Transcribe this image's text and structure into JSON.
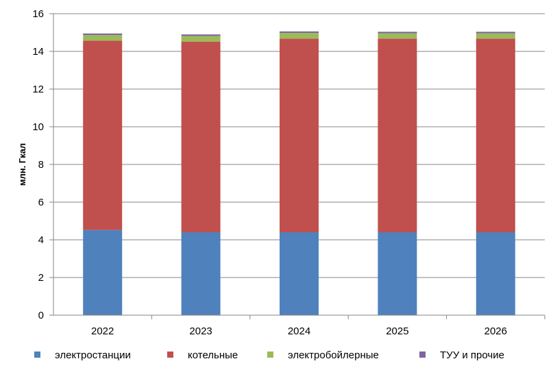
{
  "chart_data": {
    "type": "bar",
    "stacked": true,
    "title": "",
    "xlabel": "",
    "ylabel": "млн. Гкал",
    "ylim": [
      0,
      16
    ],
    "yticks": [
      "0",
      "2",
      "4",
      "6",
      "8",
      "10",
      "12",
      "14",
      "16"
    ],
    "categories": [
      "2022",
      "2023",
      "2024",
      "2025",
      "2026"
    ],
    "series": [
      {
        "name": "электростанции",
        "color": "#4F81BD",
        "values": [
          4.52,
          4.4,
          4.4,
          4.4,
          4.4
        ]
      },
      {
        "name": "котельные",
        "color": "#C0504D",
        "values": [
          10.05,
          10.12,
          10.28,
          10.28,
          10.28
        ]
      },
      {
        "name": "электробойлерные",
        "color": "#9BBB59",
        "values": [
          0.3,
          0.3,
          0.3,
          0.28,
          0.28
        ]
      },
      {
        "name": "ТУУ и прочие",
        "color": "#8064A2",
        "values": [
          0.08,
          0.08,
          0.08,
          0.08,
          0.08
        ]
      }
    ],
    "grid": true,
    "legend": "bottom"
  }
}
